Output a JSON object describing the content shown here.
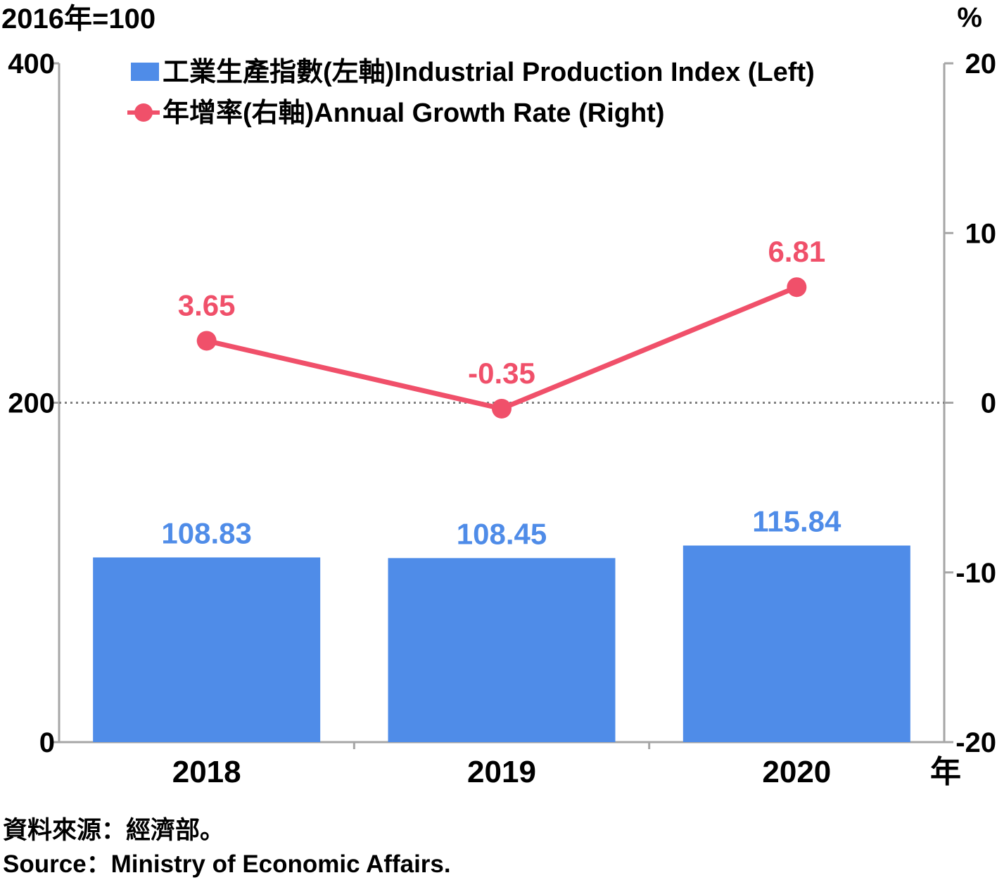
{
  "chart_data": {
    "type": "bar",
    "categories": [
      "2018",
      "2019",
      "2020"
    ],
    "series": [
      {
        "name": "工業生產指數(左軸)Industrial Production Index (Left)",
        "type": "bar",
        "axis": "left",
        "values": [
          108.83,
          108.45,
          115.84
        ],
        "labels": [
          "108.83",
          "108.45",
          "115.84"
        ]
      },
      {
        "name": "年增率(右軸)Annual Growth Rate (Right)",
        "type": "line",
        "axis": "right",
        "values": [
          3.65,
          -0.35,
          6.81
        ],
        "labels": [
          "3.65",
          "-0.35",
          "6.81"
        ]
      }
    ],
    "y_left": {
      "unit": "2016年=100",
      "min": 0,
      "max": 400,
      "ticks": [
        "0",
        "200",
        "400"
      ],
      "tick_values": [
        0,
        200,
        400
      ]
    },
    "y_right": {
      "unit": "%",
      "min": -20,
      "max": 20,
      "ticks": [
        "-20",
        "-10",
        "0",
        "10",
        "20"
      ],
      "tick_values": [
        -20,
        -10,
        0,
        10,
        20
      ]
    },
    "x_unit": "年",
    "legend_position": "top-left",
    "zero_line": "dotted",
    "colors": {
      "bar": "#4f8ce8",
      "line": "#f0506a",
      "axis": "#a6a6a6"
    }
  },
  "source": {
    "zh": "資料來源：經濟部。",
    "en": "Source：Ministry of Economic Affairs."
  }
}
